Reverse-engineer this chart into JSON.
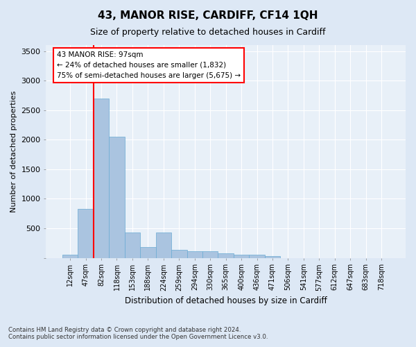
{
  "title": "43, MANOR RISE, CARDIFF, CF14 1QH",
  "subtitle": "Size of property relative to detached houses in Cardiff",
  "xlabel": "Distribution of detached houses by size in Cardiff",
  "ylabel": "Number of detached properties",
  "categories": [
    "12sqm",
    "47sqm",
    "82sqm",
    "118sqm",
    "153sqm",
    "188sqm",
    "224sqm",
    "259sqm",
    "294sqm",
    "330sqm",
    "365sqm",
    "400sqm",
    "436sqm",
    "471sqm",
    "506sqm",
    "541sqm",
    "577sqm",
    "612sqm",
    "647sqm",
    "683sqm",
    "718sqm"
  ],
  "values": [
    50,
    830,
    2700,
    2050,
    430,
    180,
    430,
    130,
    110,
    110,
    80,
    50,
    50,
    30,
    0,
    0,
    0,
    0,
    0,
    0,
    0
  ],
  "bar_color": "#aac4e0",
  "bar_edge_color": "#6aaad4",
  "vline_color": "red",
  "annotation_text": "43 MANOR RISE: 97sqm\n← 24% of detached houses are smaller (1,832)\n75% of semi-detached houses are larger (5,675) →",
  "annotation_box_color": "white",
  "annotation_box_edge_color": "red",
  "ylim": [
    0,
    3600
  ],
  "yticks": [
    0,
    500,
    1000,
    1500,
    2000,
    2500,
    3000,
    3500
  ],
  "footer": "Contains HM Land Registry data © Crown copyright and database right 2024.\nContains public sector information licensed under the Open Government Licence v3.0.",
  "bg_color": "#dde8f5",
  "plot_bg_color": "#e8f0f8",
  "title_fontsize": 11,
  "subtitle_fontsize": 9
}
